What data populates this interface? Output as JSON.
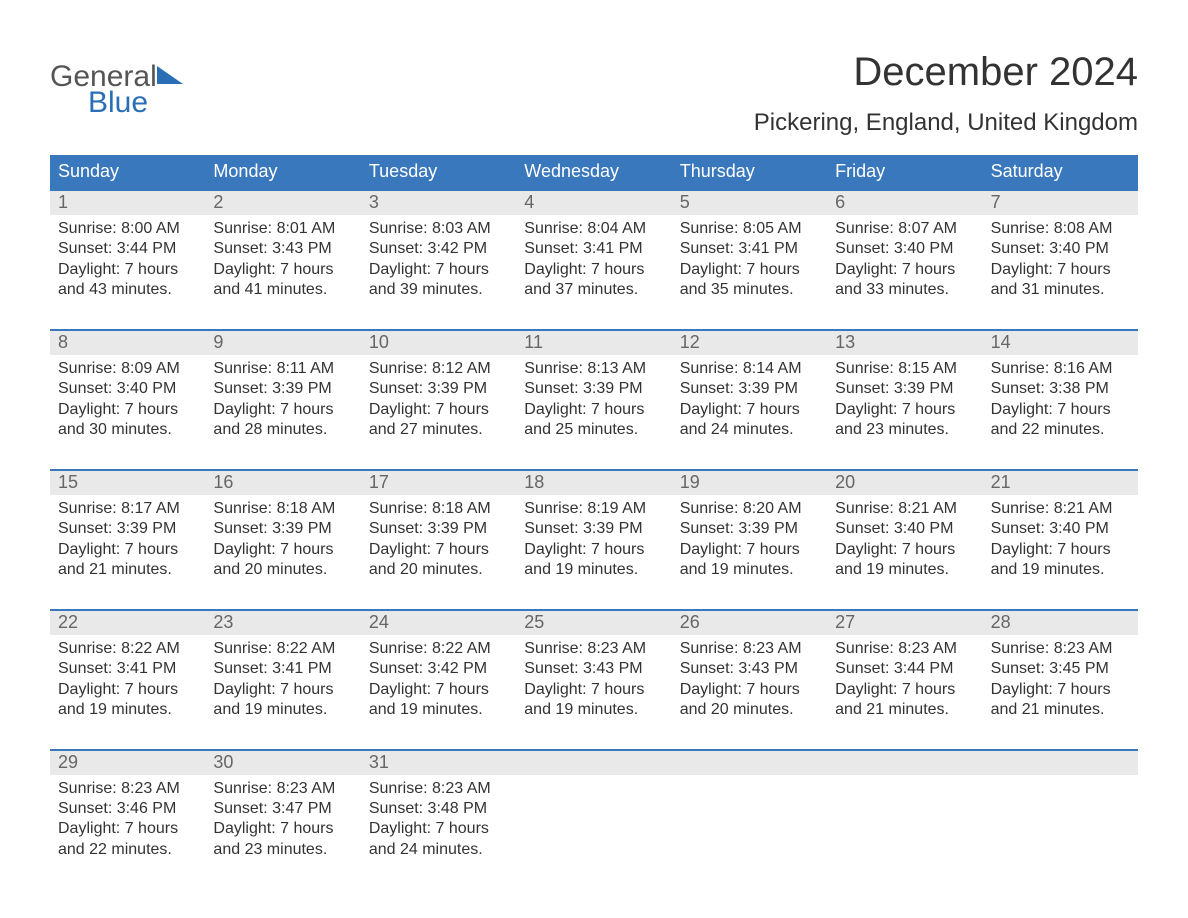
{
  "logo": {
    "word1": "General",
    "word2": "Blue"
  },
  "title": "December 2024",
  "location": "Pickering, England, United Kingdom",
  "colors": {
    "header_bg": "#3a78bd",
    "header_text": "#ffffff",
    "row_divider": "#3a78bd",
    "date_strip_bg": "#e9e9e9",
    "date_num_color": "#666666",
    "body_text": "#333333",
    "logo_grey": "#555555",
    "logo_blue": "#2a6fb5",
    "page_bg": "#ffffff"
  },
  "typography": {
    "title_fontsize": 40,
    "location_fontsize": 24,
    "weekday_fontsize": 18,
    "daynum_fontsize": 18,
    "body_fontsize": 16,
    "logo_fontsize": 30
  },
  "weekdays": [
    "Sunday",
    "Monday",
    "Tuesday",
    "Wednesday",
    "Thursday",
    "Friday",
    "Saturday"
  ],
  "weeks": [
    [
      {
        "n": "1",
        "sr": "8:00 AM",
        "ss": "3:44 PM",
        "dl": "7 hours and 43 minutes."
      },
      {
        "n": "2",
        "sr": "8:01 AM",
        "ss": "3:43 PM",
        "dl": "7 hours and 41 minutes."
      },
      {
        "n": "3",
        "sr": "8:03 AM",
        "ss": "3:42 PM",
        "dl": "7 hours and 39 minutes."
      },
      {
        "n": "4",
        "sr": "8:04 AM",
        "ss": "3:41 PM",
        "dl": "7 hours and 37 minutes."
      },
      {
        "n": "5",
        "sr": "8:05 AM",
        "ss": "3:41 PM",
        "dl": "7 hours and 35 minutes."
      },
      {
        "n": "6",
        "sr": "8:07 AM",
        "ss": "3:40 PM",
        "dl": "7 hours and 33 minutes."
      },
      {
        "n": "7",
        "sr": "8:08 AM",
        "ss": "3:40 PM",
        "dl": "7 hours and 31 minutes."
      }
    ],
    [
      {
        "n": "8",
        "sr": "8:09 AM",
        "ss": "3:40 PM",
        "dl": "7 hours and 30 minutes."
      },
      {
        "n": "9",
        "sr": "8:11 AM",
        "ss": "3:39 PM",
        "dl": "7 hours and 28 minutes."
      },
      {
        "n": "10",
        "sr": "8:12 AM",
        "ss": "3:39 PM",
        "dl": "7 hours and 27 minutes."
      },
      {
        "n": "11",
        "sr": "8:13 AM",
        "ss": "3:39 PM",
        "dl": "7 hours and 25 minutes."
      },
      {
        "n": "12",
        "sr": "8:14 AM",
        "ss": "3:39 PM",
        "dl": "7 hours and 24 minutes."
      },
      {
        "n": "13",
        "sr": "8:15 AM",
        "ss": "3:39 PM",
        "dl": "7 hours and 23 minutes."
      },
      {
        "n": "14",
        "sr": "8:16 AM",
        "ss": "3:38 PM",
        "dl": "7 hours and 22 minutes."
      }
    ],
    [
      {
        "n": "15",
        "sr": "8:17 AM",
        "ss": "3:39 PM",
        "dl": "7 hours and 21 minutes."
      },
      {
        "n": "16",
        "sr": "8:18 AM",
        "ss": "3:39 PM",
        "dl": "7 hours and 20 minutes."
      },
      {
        "n": "17",
        "sr": "8:18 AM",
        "ss": "3:39 PM",
        "dl": "7 hours and 20 minutes."
      },
      {
        "n": "18",
        "sr": "8:19 AM",
        "ss": "3:39 PM",
        "dl": "7 hours and 19 minutes."
      },
      {
        "n": "19",
        "sr": "8:20 AM",
        "ss": "3:39 PM",
        "dl": "7 hours and 19 minutes."
      },
      {
        "n": "20",
        "sr": "8:21 AM",
        "ss": "3:40 PM",
        "dl": "7 hours and 19 minutes."
      },
      {
        "n": "21",
        "sr": "8:21 AM",
        "ss": "3:40 PM",
        "dl": "7 hours and 19 minutes."
      }
    ],
    [
      {
        "n": "22",
        "sr": "8:22 AM",
        "ss": "3:41 PM",
        "dl": "7 hours and 19 minutes."
      },
      {
        "n": "23",
        "sr": "8:22 AM",
        "ss": "3:41 PM",
        "dl": "7 hours and 19 minutes."
      },
      {
        "n": "24",
        "sr": "8:22 AM",
        "ss": "3:42 PM",
        "dl": "7 hours and 19 minutes."
      },
      {
        "n": "25",
        "sr": "8:23 AM",
        "ss": "3:43 PM",
        "dl": "7 hours and 19 minutes."
      },
      {
        "n": "26",
        "sr": "8:23 AM",
        "ss": "3:43 PM",
        "dl": "7 hours and 20 minutes."
      },
      {
        "n": "27",
        "sr": "8:23 AM",
        "ss": "3:44 PM",
        "dl": "7 hours and 21 minutes."
      },
      {
        "n": "28",
        "sr": "8:23 AM",
        "ss": "3:45 PM",
        "dl": "7 hours and 21 minutes."
      }
    ],
    [
      {
        "n": "29",
        "sr": "8:23 AM",
        "ss": "3:46 PM",
        "dl": "7 hours and 22 minutes."
      },
      {
        "n": "30",
        "sr": "8:23 AM",
        "ss": "3:47 PM",
        "dl": "7 hours and 23 minutes."
      },
      {
        "n": "31",
        "sr": "8:23 AM",
        "ss": "3:48 PM",
        "dl": "7 hours and 24 minutes."
      },
      null,
      null,
      null,
      null
    ]
  ],
  "labels": {
    "sunrise_prefix": "Sunrise: ",
    "sunset_prefix": "Sunset: ",
    "daylight_prefix": "Daylight: "
  }
}
